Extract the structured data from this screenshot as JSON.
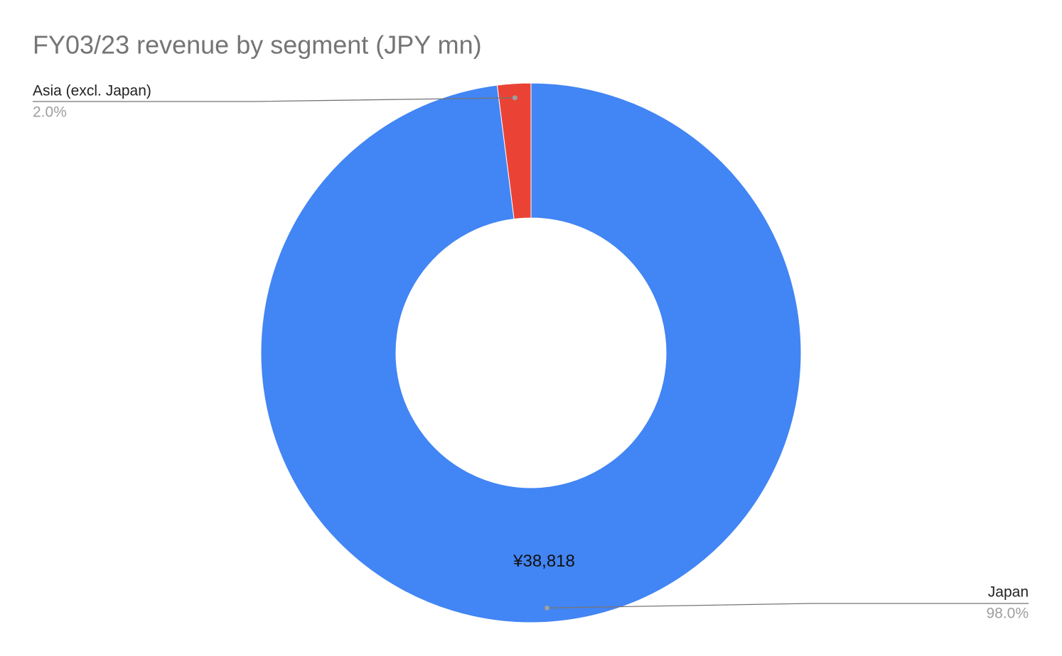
{
  "chart_data": {
    "type": "donut",
    "title": "FY03/23 revenue by segment (JPY mn)",
    "categories": [
      "Japan",
      "Asia (excl. Japan)"
    ],
    "values": [
      38818,
      792
    ],
    "value_labels": [
      "¥38,818",
      null
    ],
    "percent_labels": [
      "98.0%",
      "2.0%"
    ],
    "colors": [
      "#4285f4",
      "#ea4335"
    ]
  }
}
